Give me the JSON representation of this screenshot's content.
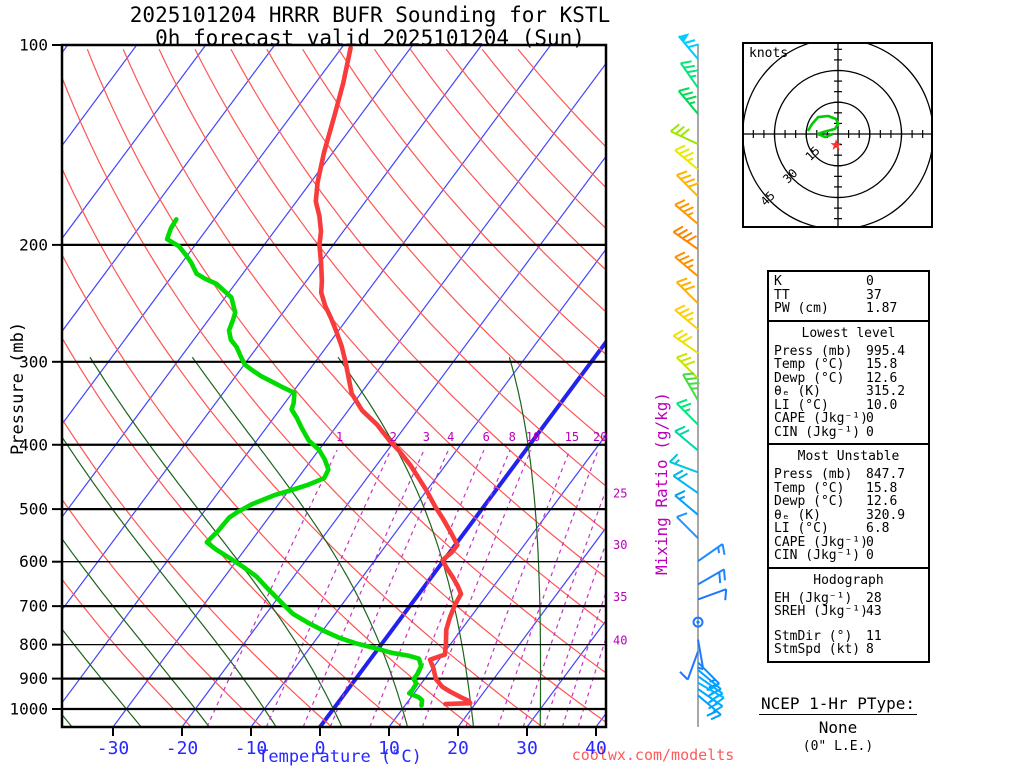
{
  "title": {
    "line1": "2025101204 HRRR BUFR Sounding for KSTL",
    "line2": "0h forecast valid 2025101204 (Sun)"
  },
  "watermark": "coolwx.com/modelts",
  "axes": {
    "pressure_label": "Pressure (mb)",
    "temperature_label": "Temperature (°C)",
    "mixing_ratio_label": "Mixing Ratio (g/kg)",
    "pressure_ticks": [
      100,
      200,
      300,
      400,
      500,
      600,
      700,
      800,
      900,
      1000
    ],
    "temperature_ticks": [
      -30,
      -20,
      -10,
      0,
      10,
      20,
      30,
      40
    ],
    "mixing_ratio_inline_labels": [
      1,
      2,
      3,
      4,
      6,
      8,
      10,
      15,
      20
    ],
    "mixing_ratio_right_labels": [
      25,
      30,
      35,
      40
    ]
  },
  "hodograph": {
    "unit_label": "knots",
    "ring_labels": [
      "15",
      "30",
      "45"
    ],
    "rings_kt": [
      15,
      30,
      45
    ],
    "tick_step_kt": 5,
    "trace_uv_kt": [
      [
        -14.2,
        1.4
      ],
      [
        -12.3,
        4.7
      ],
      [
        -9.4,
        8.0
      ],
      [
        -4.7,
        8.5
      ],
      [
        -0.9,
        7.1
      ],
      [
        0.0,
        4.7
      ],
      [
        -1.4,
        2.4
      ],
      [
        -7.1,
        0.9
      ],
      [
        -9.4,
        0.0
      ],
      [
        -6.1,
        -1.4
      ],
      [
        -2.4,
        0.0
      ]
    ],
    "storm_motion_uv_kt": [
      -0.9,
      -5.2
    ]
  },
  "table": {
    "sections": [
      {
        "header": null,
        "rows": [
          [
            "K",
            "0"
          ],
          [
            "TT",
            "37"
          ],
          [
            "PW (cm)",
            "1.87"
          ]
        ]
      },
      {
        "header": "Lowest level",
        "rows": [
          [
            "Press (mb)",
            "995.4"
          ],
          [
            "Temp (°C)",
            "15.8"
          ],
          [
            "Dewp (°C)",
            "12.6"
          ],
          [
            "θₑ (K)",
            "315.2"
          ],
          [
            "LI (°C)",
            "10.0"
          ],
          [
            "CAPE (Jkg⁻¹)",
            "0"
          ],
          [
            "CIN (Jkg⁻¹)",
            "0"
          ]
        ]
      },
      {
        "header": "Most Unstable",
        "rows": [
          [
            "Press (mb)",
            "847.7"
          ],
          [
            "Temp (°C)",
            "15.8"
          ],
          [
            "Dewp (°C)",
            "12.6"
          ],
          [
            "θₑ (K)",
            "320.9"
          ],
          [
            "LI (°C)",
            "6.8"
          ],
          [
            "CAPE (Jkg⁻¹)",
            "0"
          ],
          [
            "CIN (Jkg⁻¹)",
            "0"
          ]
        ]
      },
      {
        "header": "Hodograph",
        "rows": [
          [
            "EH (Jkg⁻¹)",
            "28"
          ],
          [
            "SREH (Jkg⁻¹)",
            "43"
          ],
          [
            "StmDir (°)",
            "11",
            "gap"
          ],
          [
            "StmSpd (kt)",
            "8"
          ]
        ]
      }
    ]
  },
  "footer": {
    "line1": "NCEP 1-Hr PType:",
    "line2": "None",
    "line3": "(0\" L.E.)"
  },
  "chart_data": {
    "type": "skewt-log-p",
    "pressure_axis_mb": [
      100,
      1064
    ],
    "temperature_axis_c": [
      -40,
      45
    ],
    "isotherm_step_c": 10,
    "dry_adiabat_theta_k": [
      250,
      260,
      270,
      280,
      290,
      300,
      310,
      320,
      330,
      340,
      350,
      360,
      370,
      380,
      390,
      400,
      410,
      420,
      430,
      440
    ],
    "moist_adiabat_start_c": [
      -60,
      -50,
      -40,
      -30,
      -20,
      -10,
      0,
      10,
      20,
      30,
      40
    ],
    "mixing_ratio_lines_gkg": [
      1,
      2,
      3,
      4,
      6,
      8,
      10,
      15,
      20,
      25,
      30,
      35,
      40
    ],
    "temperature_profile": [
      [
        101,
        -68.7
      ],
      [
        114,
        -66.0
      ],
      [
        128,
        -63.7
      ],
      [
        145,
        -61.3
      ],
      [
        161,
        -59.0
      ],
      [
        172,
        -57.2
      ],
      [
        181,
        -55.1
      ],
      [
        191,
        -53.2
      ],
      [
        200,
        -52.0
      ],
      [
        213,
        -49.8
      ],
      [
        227,
        -47.7
      ],
      [
        236,
        -46.6
      ],
      [
        247,
        -44.6
      ],
      [
        258,
        -42.4
      ],
      [
        269,
        -40.4
      ],
      [
        284,
        -37.9
      ],
      [
        301,
        -35.5
      ],
      [
        335,
        -31.3
      ],
      [
        355,
        -28.0
      ],
      [
        373,
        -24.3
      ],
      [
        394,
        -20.8
      ],
      [
        409,
        -18.2
      ],
      [
        430,
        -15.0
      ],
      [
        449,
        -12.5
      ],
      [
        469,
        -10.0
      ],
      [
        496,
        -7.0
      ],
      [
        518,
        -4.5
      ],
      [
        543,
        -1.9
      ],
      [
        566,
        0.3
      ],
      [
        580,
        0.3
      ],
      [
        597,
        -0.2
      ],
      [
        614,
        1.3
      ],
      [
        633,
        3.1
      ],
      [
        653,
        4.8
      ],
      [
        671,
        6.1
      ],
      [
        688,
        6.3
      ],
      [
        697,
        6.4
      ],
      [
        727,
        7.0
      ],
      [
        759,
        7.8
      ],
      [
        798,
        9.3
      ],
      [
        828,
        10.3
      ],
      [
        843,
        8.7
      ],
      [
        868,
        10.1
      ],
      [
        901,
        11.6
      ],
      [
        926,
        13.4
      ],
      [
        941,
        15.0
      ],
      [
        960,
        17.2
      ],
      [
        973,
        18.8
      ],
      [
        980,
        19.2
      ],
      [
        983,
        15.7
      ]
    ],
    "dewpoint_profile": [
      [
        183,
        -75.5
      ],
      [
        189,
        -75.3
      ],
      [
        196,
        -74.7
      ],
      [
        201,
        -72.2
      ],
      [
        207,
        -70.3
      ],
      [
        213,
        -68.6
      ],
      [
        221,
        -66.7
      ],
      [
        225,
        -64.9
      ],
      [
        229,
        -62.7
      ],
      [
        235,
        -60.7
      ],
      [
        240,
        -59.1
      ],
      [
        253,
        -56.9
      ],
      [
        260,
        -56.4
      ],
      [
        269,
        -55.9
      ],
      [
        278,
        -54.6
      ],
      [
        285,
        -53.0
      ],
      [
        295,
        -51.3
      ],
      [
        303,
        -49.9
      ],
      [
        309,
        -48.2
      ],
      [
        315,
        -46.4
      ],
      [
        321,
        -44.3
      ],
      [
        328,
        -41.9
      ],
      [
        334,
        -39.7
      ],
      [
        346,
        -38.7
      ],
      [
        354,
        -38.3
      ],
      [
        364,
        -36.7
      ],
      [
        377,
        -34.9
      ],
      [
        394,
        -32.5
      ],
      [
        407,
        -30.0
      ],
      [
        421,
        -28.1
      ],
      [
        436,
        -26.5
      ],
      [
        449,
        -26.2
      ],
      [
        460,
        -27.9
      ],
      [
        468,
        -29.6
      ],
      [
        476,
        -31.5
      ],
      [
        491,
        -33.8
      ],
      [
        505,
        -35.1
      ],
      [
        515,
        -35.7
      ],
      [
        540,
        -35.9
      ],
      [
        561,
        -36.3
      ],
      [
        575,
        -34.2
      ],
      [
        593,
        -31.2
      ],
      [
        610,
        -28.5
      ],
      [
        631,
        -25.5
      ],
      [
        654,
        -23.0
      ],
      [
        676,
        -20.6
      ],
      [
        695,
        -18.6
      ],
      [
        719,
        -16.1
      ],
      [
        742,
        -12.9
      ],
      [
        762,
        -9.9
      ],
      [
        780,
        -7.0
      ],
      [
        796,
        -3.9
      ],
      [
        809,
        -0.7
      ],
      [
        823,
        2.4
      ],
      [
        831,
        5.1
      ],
      [
        840,
        7.0
      ],
      [
        862,
        8.1
      ],
      [
        886,
        8.4
      ],
      [
        901,
        8.4
      ],
      [
        916,
        9.3
      ],
      [
        937,
        9.4
      ],
      [
        947,
        9.3
      ],
      [
        960,
        11.1
      ],
      [
        970,
        11.9
      ],
      [
        988,
        12.4
      ]
    ],
    "wind_barbs": [
      {
        "p": 105,
        "color": "#00ccff",
        "dir": -40,
        "flag": 1,
        "full": 2,
        "half": 0
      },
      {
        "p": 116,
        "color": "#00e87c",
        "dir": -35,
        "flag": 0,
        "full": 3,
        "half": 1
      },
      {
        "p": 127,
        "color": "#00dd55",
        "dir": -40,
        "flag": 0,
        "full": 3,
        "half": 1
      },
      {
        "p": 141,
        "color": "#99e800",
        "dir": -65,
        "flag": 0,
        "full": 3,
        "half": 0
      },
      {
        "p": 154,
        "color": "#e8e800",
        "dir": -50,
        "flag": 0,
        "full": 3,
        "half": 1
      },
      {
        "p": 169,
        "color": "#ffb400",
        "dir": -45,
        "flag": 0,
        "full": 4,
        "half": 0
      },
      {
        "p": 186,
        "color": "#ff9900",
        "dir": -50,
        "flag": 0,
        "full": 3,
        "half": 1
      },
      {
        "p": 203,
        "color": "#ff8400",
        "dir": -55,
        "flag": 0,
        "full": 4,
        "half": 0
      },
      {
        "p": 223,
        "color": "#ff9100",
        "dir": -50,
        "flag": 0,
        "full": 3,
        "half": 1
      },
      {
        "p": 245,
        "color": "#ffb000",
        "dir": -45,
        "flag": 0,
        "full": 3,
        "half": 0
      },
      {
        "p": 268,
        "color": "#ffd000",
        "dir": -50,
        "flag": 0,
        "full": 3,
        "half": 1
      },
      {
        "p": 291,
        "color": "#f0e000",
        "dir": -55,
        "flag": 0,
        "full": 3,
        "half": 0
      },
      {
        "p": 318,
        "color": "#c8e400",
        "dir": -45,
        "flag": 0,
        "full": 3,
        "half": 0
      },
      {
        "p": 343,
        "color": "#44dd44",
        "dir": -30,
        "flag": 0,
        "full": 3,
        "half": 1
      },
      {
        "p": 373,
        "color": "#00e87c",
        "dir": -45,
        "flag": 0,
        "full": 2,
        "half": 1
      },
      {
        "p": 408,
        "color": "#00d8a8",
        "dir": -50,
        "flag": 0,
        "full": 2,
        "half": 0
      },
      {
        "p": 440,
        "color": "#00c8d8",
        "dir": -70,
        "flag": 0,
        "full": 1,
        "half": 1
      },
      {
        "p": 473,
        "color": "#00b4f0",
        "dir": -55,
        "flag": 0,
        "full": 2,
        "half": 0
      },
      {
        "p": 510,
        "color": "#00a0ff",
        "dir": -50,
        "flag": 0,
        "full": 1,
        "half": 1
      },
      {
        "p": 553,
        "color": "#1e96ff",
        "dir": -45,
        "flag": 0,
        "full": 1,
        "half": 0
      },
      {
        "p": 599,
        "color": "#1e8cff",
        "dir": 55,
        "flag": 0,
        "full": 1,
        "half": 1
      },
      {
        "p": 649,
        "color": "#1e82ff",
        "dir": 60,
        "flag": 0,
        "full": 2,
        "half": 0
      },
      {
        "p": 684,
        "color": "#1e78ff",
        "dir": 70,
        "flag": 0,
        "full": 1,
        "half": 0
      },
      {
        "p": 740,
        "color": "#1e78ff",
        "dir": 0,
        "flag": 0,
        "full": 0,
        "half": 0,
        "calm": true
      },
      {
        "p": 786,
        "color": "#1e78ff",
        "dir": 170,
        "flag": 0,
        "full": 0,
        "half": 1
      },
      {
        "p": 819,
        "color": "#1e78ff",
        "dir": -160,
        "flag": 0,
        "full": 1,
        "half": 0
      },
      {
        "p": 851,
        "color": "#0a8cff",
        "dir": 135,
        "flag": 0,
        "full": 1,
        "half": 1
      },
      {
        "p": 873,
        "color": "#00a0ff",
        "dir": 130,
        "flag": 0,
        "full": 2,
        "half": 0
      },
      {
        "p": 893,
        "color": "#00aaff",
        "dir": 125,
        "flag": 0,
        "full": 2,
        "half": 1
      },
      {
        "p": 913,
        "color": "#00b4ff",
        "dir": 120,
        "flag": 0,
        "full": 2,
        "half": 0
      },
      {
        "p": 933,
        "color": "#00aaff",
        "dir": 125,
        "flag": 0,
        "full": 2,
        "half": 1
      },
      {
        "p": 954,
        "color": "#00a0ff",
        "dir": 130,
        "flag": 0,
        "full": 2,
        "half": 0
      }
    ]
  },
  "style": {
    "isotherm_color": "#4444ff",
    "zero_isotherm_color": "#2222ee",
    "dry_adiabat_color": "#ff5555",
    "moist_adiabat_color": "#1c641c",
    "mixing_ratio_color": "#c832c8",
    "temperature_trace_color": "#f83c3c",
    "dewpoint_trace_color": "#00dc00",
    "pressure_line_color": "#000000",
    "temp_axis_text_color": "#2828ff",
    "mixing_text_color": "#bb00bb",
    "hodograph_trace_color": "#00cc00",
    "storm_marker_color": "#ff3030",
    "barb_column_color": "#8c8c8c"
  }
}
